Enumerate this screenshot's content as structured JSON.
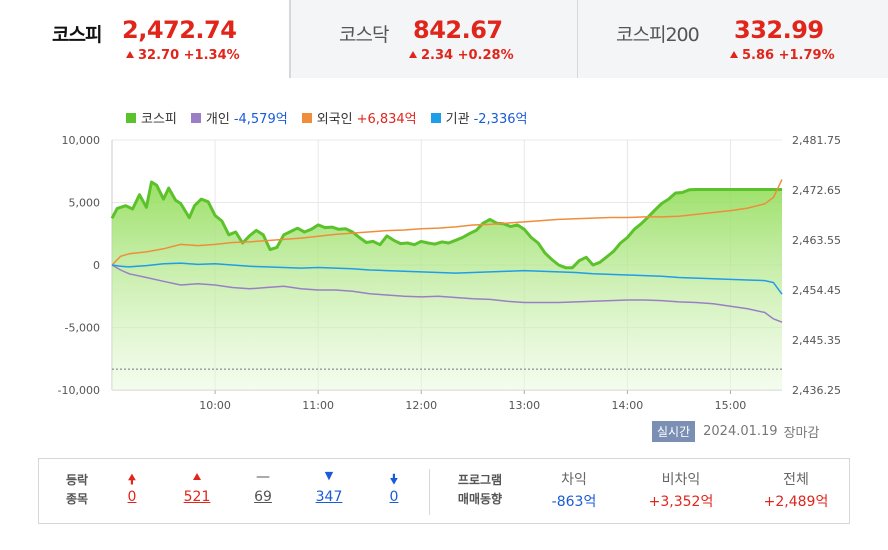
{
  "tabs": [
    {
      "name": "코스피",
      "value": "2,472.74",
      "change": "32.70 +1.34%"
    },
    {
      "name": "코스닥",
      "value": "842.67",
      "change": "2.34 +0.28%"
    },
    {
      "name": "코스피200",
      "value": "332.99",
      "change": "5.86 +1.79%"
    }
  ],
  "legend": [
    {
      "label": "코스피",
      "value": "",
      "color": "#5cc22b"
    },
    {
      "label": "개인",
      "value": "-4,579억",
      "color": "#9a7fc7",
      "sign": "neg"
    },
    {
      "label": "외국인",
      "value": "+6,834억",
      "color": "#f08d3c",
      "sign": "pos"
    },
    {
      "label": "기관",
      "value": "-2,336억",
      "color": "#1e9ee8",
      "sign": "neg"
    }
  ],
  "status": {
    "badge": "실시간",
    "date": "2024.01.19",
    "state": "장마감"
  },
  "breadth": {
    "label1": "등락",
    "label2": "종목",
    "items": [
      {
        "icon": "limit-up",
        "value": "0",
        "color": "#e0251b"
      },
      {
        "icon": "up",
        "value": "521",
        "color": "#e0251b"
      },
      {
        "icon": "flat",
        "value": "69",
        "color": "#555"
      },
      {
        "icon": "down",
        "value": "347",
        "color": "#1a5bd8"
      },
      {
        "icon": "limit-down",
        "value": "0",
        "color": "#1a5bd8"
      }
    ]
  },
  "program": {
    "label1": "프로그램",
    "label2": "매매동향",
    "items": [
      {
        "label": "차익",
        "value": "-863억",
        "sign": "neg"
      },
      {
        "label": "비차익",
        "value": "+3,352억",
        "sign": "pos"
      },
      {
        "label": "전체",
        "value": "+2,489억",
        "sign": "pos"
      }
    ]
  },
  "chart_data": {
    "type": "line",
    "x_ticks": [
      "10:00",
      "11:00",
      "12:00",
      "13:00",
      "14:00",
      "15:00"
    ],
    "y_left_ticks": [
      "10,000",
      "5,000",
      "0",
      "-5,000",
      "-10,000"
    ],
    "y_left_range": [
      -10000,
      10000
    ],
    "y_right_ticks": [
      "2,481.75",
      "2,472.65",
      "2,463.55",
      "2,454.45",
      "2,445.35",
      "2,436.25"
    ],
    "y_right_range": [
      2436.25,
      2481.75
    ],
    "x_range_minutes": [
      540,
      930
    ],
    "prev_close_right": 2440.04,
    "series": [
      {
        "name": "코스피",
        "axis": "right",
        "color": "#5cc22b",
        "x": [
          540,
          543,
          548,
          552,
          556,
          560,
          563,
          566,
          570,
          573,
          577,
          580,
          585,
          588,
          592,
          596,
          600,
          604,
          608,
          612,
          616,
          620,
          624,
          628,
          632,
          636,
          640,
          644,
          648,
          652,
          656,
          660,
          664,
          668,
          672,
          676,
          680,
          684,
          688,
          692,
          696,
          700,
          704,
          708,
          712,
          716,
          720,
          724,
          728,
          732,
          736,
          740,
          744,
          748,
          752,
          756,
          760,
          764,
          768,
          772,
          776,
          780,
          784,
          788,
          792,
          796,
          800,
          804,
          808,
          812,
          816,
          820,
          824,
          828,
          832,
          836,
          840,
          844,
          848,
          852,
          856,
          860,
          864,
          868,
          872,
          876,
          880,
          884,
          888,
          892,
          896,
          900,
          904,
          908,
          912,
          916,
          920,
          924,
          928,
          930
        ],
        "y": [
          2467.5,
          2469.3,
          2469.8,
          2469.2,
          2471.8,
          2469.5,
          2474.1,
          2473.5,
          2471.0,
          2473.0,
          2470.8,
          2470.2,
          2467.6,
          2469.8,
          2471.0,
          2470.5,
          2468.0,
          2467.0,
          2464.5,
          2465.0,
          2463.0,
          2464.3,
          2465.3,
          2464.5,
          2461.8,
          2462.2,
          2464.5,
          2465.1,
          2465.7,
          2465.0,
          2465.5,
          2466.3,
          2465.8,
          2465.9,
          2465.5,
          2465.6,
          2465.0,
          2464.0,
          2463.1,
          2463.3,
          2462.7,
          2464.3,
          2463.5,
          2462.9,
          2463.0,
          2462.7,
          2463.3,
          2463.0,
          2462.8,
          2463.2,
          2463.0,
          2463.5,
          2464.0,
          2464.7,
          2465.3,
          2466.6,
          2467.3,
          2466.6,
          2466.5,
          2466.0,
          2466.3,
          2465.5,
          2464.0,
          2463.0,
          2461.2,
          2460.0,
          2459.0,
          2458.5,
          2458.5,
          2459.8,
          2460.4,
          2459.0,
          2459.5,
          2460.5,
          2461.5,
          2463.0,
          2464.0,
          2465.5,
          2466.5,
          2467.7,
          2469.0,
          2470.2,
          2471.0,
          2472.1,
          2472.2,
          2472.7,
          2472.74,
          2472.74,
          2472.74,
          2472.74,
          2472.74,
          2472.74,
          2472.74,
          2472.74,
          2472.74,
          2472.74,
          2472.74,
          2472.74,
          2472.74,
          2472.74
        ]
      },
      {
        "name": "외국인",
        "axis": "left",
        "color": "#f08d3c",
        "x": [
          540,
          545,
          550,
          560,
          570,
          580,
          590,
          600,
          610,
          620,
          630,
          640,
          650,
          660,
          670,
          680,
          690,
          700,
          710,
          720,
          730,
          740,
          750,
          760,
          770,
          780,
          790,
          800,
          810,
          820,
          830,
          840,
          850,
          860,
          870,
          880,
          890,
          900,
          910,
          920,
          925,
          930
        ],
        "y": [
          0,
          700,
          900,
          1050,
          1300,
          1650,
          1550,
          1650,
          1800,
          1850,
          1950,
          2050,
          2150,
          2300,
          2450,
          2550,
          2650,
          2750,
          2800,
          2900,
          2950,
          3050,
          3200,
          3250,
          3350,
          3450,
          3550,
          3650,
          3700,
          3750,
          3800,
          3800,
          3850,
          3850,
          3900,
          4050,
          4200,
          4350,
          4550,
          4900,
          5400,
          6834
        ]
      },
      {
        "name": "개인",
        "axis": "left",
        "color": "#9a7fc7",
        "x": [
          540,
          545,
          550,
          560,
          570,
          580,
          590,
          600,
          610,
          620,
          630,
          640,
          650,
          660,
          670,
          680,
          690,
          700,
          710,
          720,
          730,
          740,
          750,
          760,
          770,
          780,
          790,
          800,
          810,
          820,
          830,
          840,
          850,
          860,
          870,
          880,
          890,
          900,
          910,
          920,
          925,
          930
        ],
        "y": [
          0,
          -400,
          -700,
          -1000,
          -1300,
          -1600,
          -1500,
          -1600,
          -1800,
          -1900,
          -1800,
          -1700,
          -1900,
          -2000,
          -2000,
          -2100,
          -2300,
          -2400,
          -2500,
          -2550,
          -2500,
          -2600,
          -2700,
          -2750,
          -2900,
          -3000,
          -3000,
          -3000,
          -2950,
          -2900,
          -2850,
          -2800,
          -2800,
          -2850,
          -2950,
          -3000,
          -3100,
          -3300,
          -3500,
          -3800,
          -4300,
          -4579
        ]
      },
      {
        "name": "기관",
        "axis": "left",
        "color": "#1e9ee8",
        "x": [
          540,
          545,
          550,
          560,
          570,
          580,
          590,
          600,
          610,
          620,
          630,
          640,
          650,
          660,
          670,
          680,
          690,
          700,
          710,
          720,
          730,
          740,
          750,
          760,
          770,
          780,
          790,
          800,
          810,
          820,
          830,
          840,
          850,
          860,
          870,
          880,
          890,
          900,
          910,
          920,
          925,
          930
        ],
        "y": [
          0,
          -100,
          -150,
          -50,
          100,
          150,
          50,
          100,
          0,
          -100,
          -150,
          -200,
          -250,
          -200,
          -250,
          -300,
          -400,
          -450,
          -500,
          -550,
          -600,
          -650,
          -600,
          -550,
          -500,
          -450,
          -500,
          -550,
          -600,
          -700,
          -750,
          -800,
          -850,
          -900,
          -1000,
          -1050,
          -1100,
          -1150,
          -1200,
          -1250,
          -1400,
          -2336
        ]
      }
    ]
  }
}
